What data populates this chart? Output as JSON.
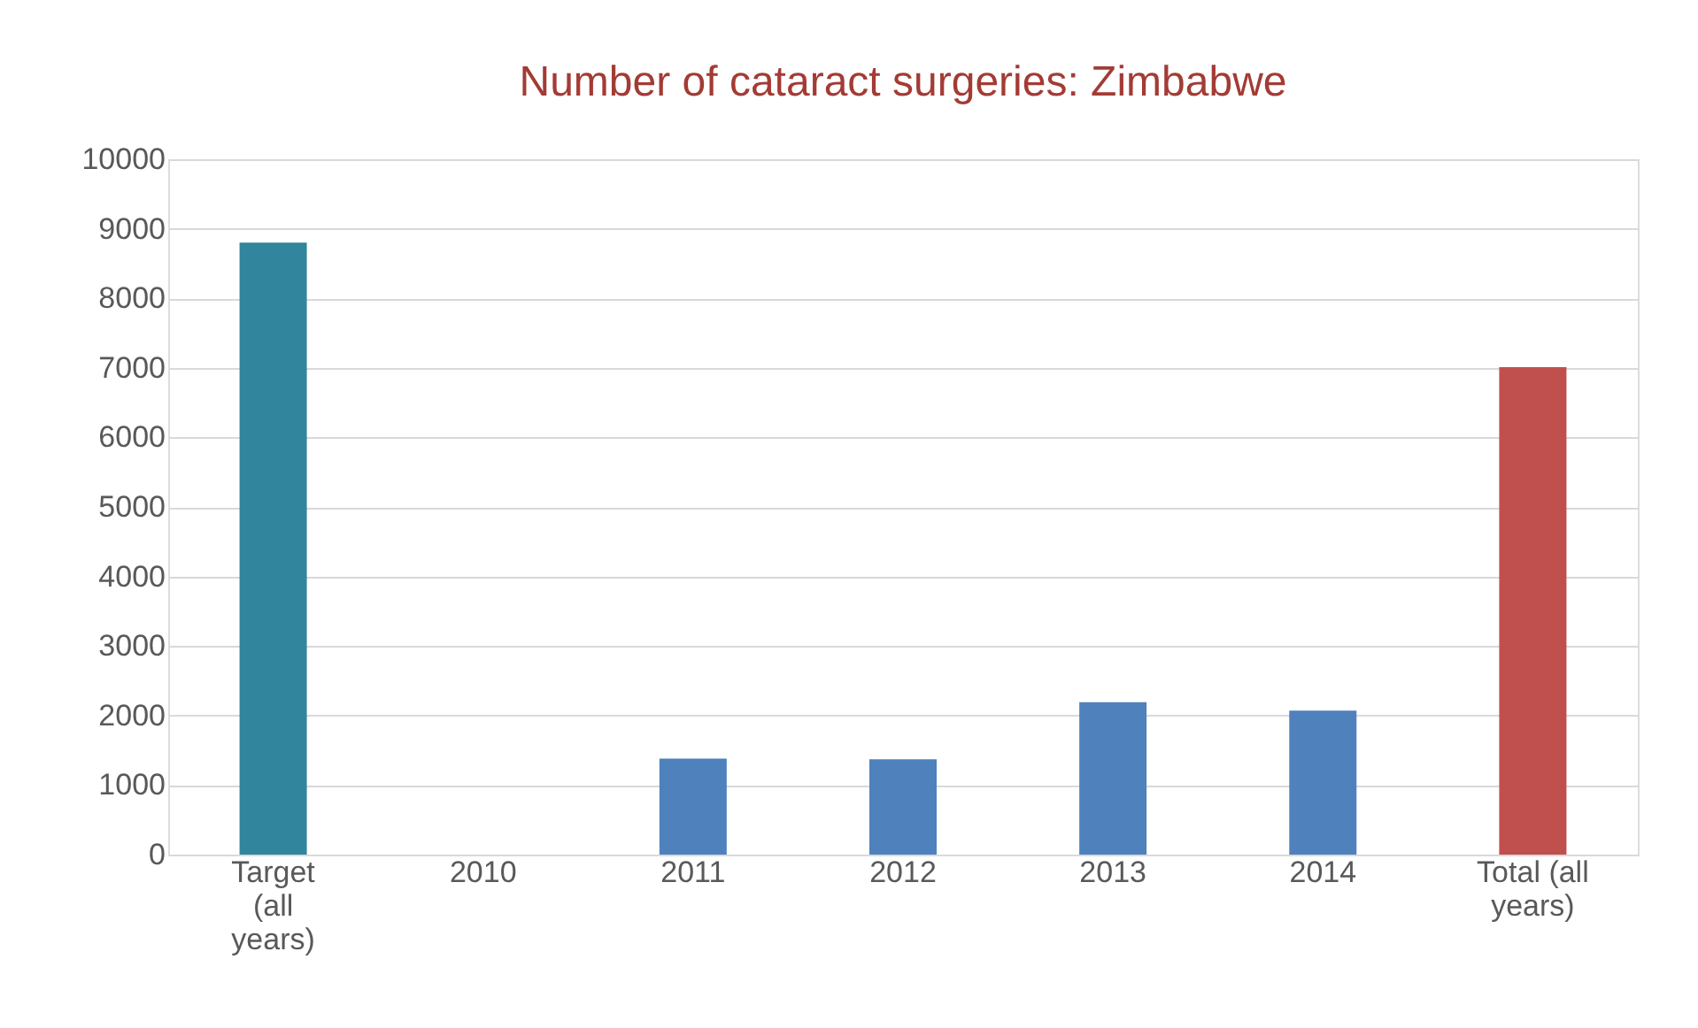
{
  "chart_data": {
    "type": "bar",
    "title": "Number of cataract surgeries: Zimbabwe",
    "categories": [
      "Target (all years)",
      "2010",
      "2011",
      "2012",
      "2013",
      "2014",
      "Total (all years)"
    ],
    "values": [
      8800,
      null,
      1380,
      1370,
      2190,
      2070,
      7010
    ],
    "colors": [
      "#31859c",
      "#4f81bd",
      "#4f81bd",
      "#4f81bd",
      "#4f81bd",
      "#4f81bd",
      "#c0504d"
    ],
    "ylim": [
      0,
      10000
    ],
    "yticks": [
      0,
      1000,
      2000,
      3000,
      4000,
      5000,
      6000,
      7000,
      8000,
      9000,
      10000
    ],
    "grid": "y"
  }
}
